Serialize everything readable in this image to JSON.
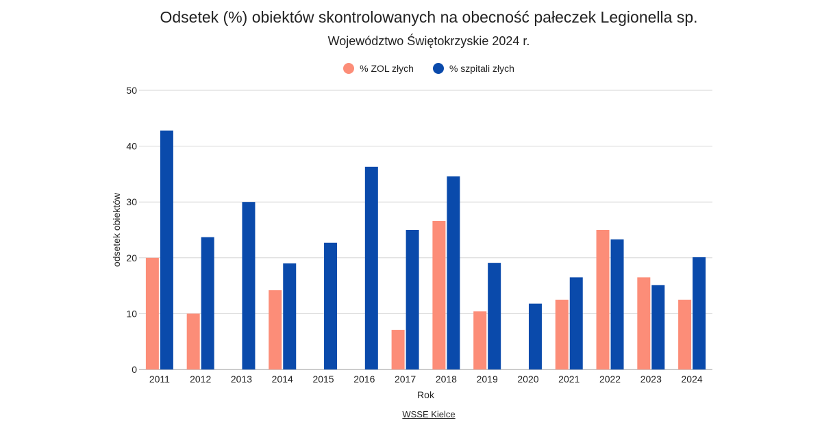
{
  "chart_data": {
    "type": "bar",
    "title": "Odsetek (%) obiektów skontrolowanych na obecność pałeczek Legionella sp.",
    "subtitle": "Województwo Świętokrzyskie 2024 r.",
    "xlabel": "Rok",
    "ylabel": "odsetek obiektów",
    "ylim": [
      0,
      50
    ],
    "yticks": [
      "0",
      "10",
      "20",
      "30",
      "40",
      "50"
    ],
    "grid": true,
    "legend_position": "top",
    "categories": [
      "2011",
      "2012",
      "2013",
      "2014",
      "2015",
      "2016",
      "2017",
      "2018",
      "2019",
      "2020",
      "2021",
      "2022",
      "2023",
      "2024"
    ],
    "series": [
      {
        "name": "% ZOL złych",
        "color": "#fc8d78",
        "values": [
          20,
          10,
          0,
          14.2,
          0,
          0,
          7.1,
          26.6,
          10.4,
          0,
          12.5,
          25,
          16.5,
          12.5
        ]
      },
      {
        "name": "% szpitali złych",
        "color": "#0a4aab",
        "values": [
          42.8,
          23.7,
          30,
          19,
          22.7,
          36.3,
          25,
          34.6,
          19.1,
          11.8,
          16.5,
          23.3,
          15.1,
          20.1
        ]
      }
    ],
    "source": "WSSE Kielce"
  }
}
